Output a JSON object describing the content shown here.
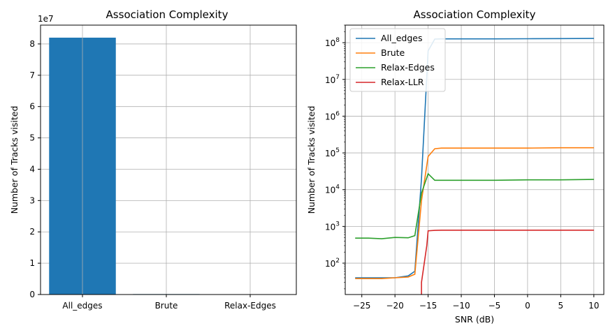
{
  "chart_data": [
    {
      "type": "bar",
      "title": "Association Complexity",
      "ylabel": "Number of Tracks visited",
      "xlabel": "",
      "offset_label": "1e7",
      "categories": [
        "All_edges",
        "Brute",
        "Relax-Edges"
      ],
      "values": [
        82000000,
        140000,
        19000
      ],
      "ylim": [
        0,
        86000000
      ],
      "yticks": [
        0,
        1,
        2,
        3,
        4,
        5,
        6,
        7,
        8
      ],
      "grid": true,
      "bar_color": "#1f77b4"
    },
    {
      "type": "line",
      "title": "Association Complexity",
      "xlabel": "SNR (dB)",
      "ylabel": "Number of Tracks visited",
      "yscale": "log",
      "xlim": [
        -27.5,
        11.5
      ],
      "ylim": [
        14,
        300000000
      ],
      "xticks": [
        -25,
        -20,
        -15,
        -10,
        -5,
        0,
        5,
        10
      ],
      "xtick_labels": [
        "−25",
        "−20",
        "−15",
        "−10",
        "−5",
        "0",
        "5",
        "10"
      ],
      "ytick_exponents": [
        2,
        3,
        4,
        5,
        6,
        7,
        8
      ],
      "grid": true,
      "legend_position": "top-left",
      "x": [
        -26,
        -24,
        -22,
        -20,
        -18,
        -17,
        -16,
        -15,
        -14,
        -13,
        -12,
        -10,
        -5,
        0,
        5,
        10
      ],
      "series": [
        {
          "name": "All_edges",
          "color": "#1f77b4",
          "values": [
            40,
            40,
            40,
            40,
            45,
            60,
            20000,
            60000000,
            125000000,
            127000000,
            127000000,
            127000000,
            127000000,
            128000000,
            129000000,
            130000000
          ]
        },
        {
          "name": "Brute",
          "color": "#ff7f0e",
          "values": [
            38,
            38,
            38,
            40,
            42,
            50,
            5000,
            80000,
            130000,
            135000,
            135000,
            135000,
            135000,
            135000,
            138000,
            138000
          ]
        },
        {
          "name": "Relax-Edges",
          "color": "#2ca02c",
          "values": [
            480,
            480,
            460,
            500,
            490,
            560,
            8000,
            27000,
            18000,
            18000,
            18000,
            18000,
            18000,
            18500,
            18500,
            19000
          ]
        },
        {
          "name": "Relax-LLR",
          "color": "#d62728",
          "x": [
            -16,
            -16,
            -15.2,
            -15,
            -14,
            -13,
            -12,
            -10,
            -5,
            0,
            5,
            10
          ],
          "values": [
            14,
            30,
            300,
            760,
            780,
            790,
            790,
            790,
            790,
            790,
            790,
            790
          ]
        }
      ]
    }
  ]
}
